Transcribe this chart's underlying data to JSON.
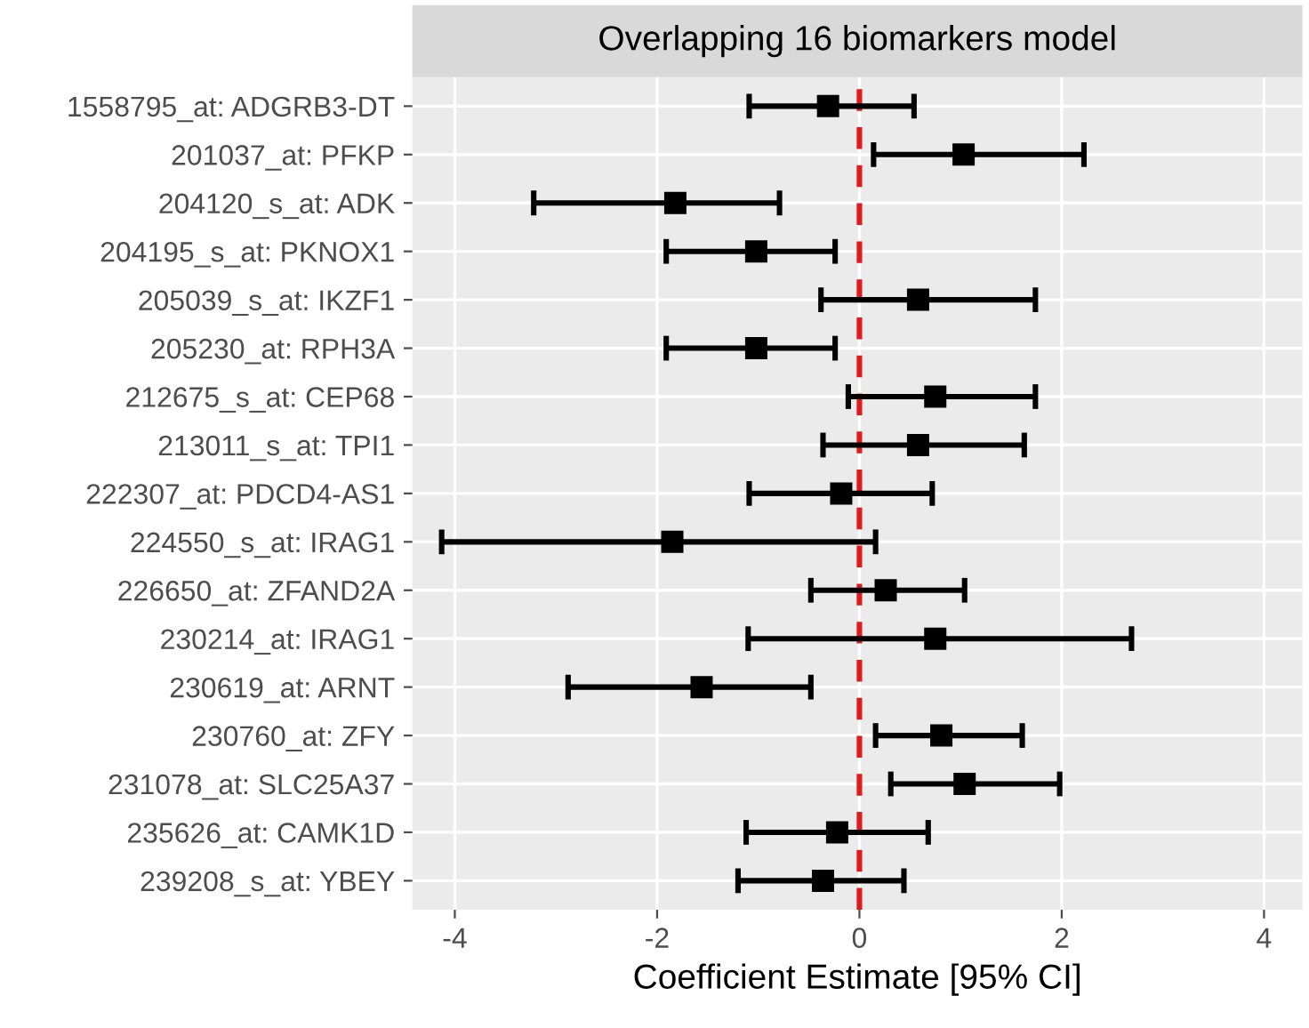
{
  "chart_data": {
    "type": "scatter",
    "orientation": "horizontal",
    "title": "Overlapping 16 biomarkers model",
    "xlabel": "Coefficient Estimate [95% CI]",
    "categories": [
      "1558795_at: ADGRB3-DT",
      "201037_at: PFKP",
      "204120_s_at: ADK",
      "204195_s_at: PKNOX1",
      "205039_s_at: IKZF1",
      "205230_at: RPH3A",
      "212675_s_at: CEP68",
      "213011_s_at: TPI1",
      "222307_at: PDCD4-AS1",
      "224550_s_at: IRAG1",
      "226650_at: ZFAND2A",
      "230214_at: IRAG1",
      "230619_at: ARNT",
      "230760_at: ZFY",
      "231078_at: SLC25A37",
      "235626_at: CAMK1D",
      "239208_s_at: YBEY"
    ],
    "values": [
      -0.31,
      1.03,
      -1.82,
      -1.02,
      0.58,
      -1.02,
      0.75,
      0.58,
      -0.18,
      -1.85,
      0.26,
      0.75,
      -1.56,
      0.81,
      1.04,
      -0.22,
      -0.36
    ],
    "errors": [
      [
        -1.09,
        0.54
      ],
      [
        0.14,
        2.22
      ],
      [
        -3.22,
        -0.79
      ],
      [
        -1.91,
        -0.24
      ],
      [
        -0.38,
        1.74
      ],
      [
        -1.91,
        -0.24
      ],
      [
        -0.11,
        1.74
      ],
      [
        -0.36,
        1.63
      ],
      [
        -1.09,
        0.72
      ],
      [
        -4.13,
        0.16
      ],
      [
        -0.48,
        1.04
      ],
      [
        -1.1,
        2.69
      ],
      [
        -2.88,
        -0.48
      ],
      [
        0.16,
        1.61
      ],
      [
        0.31,
        1.98
      ],
      [
        -1.12,
        0.68
      ],
      [
        -1.2,
        0.44
      ]
    ],
    "color": "#000000",
    "marker": "square",
    "xlim": [
      -4.42,
      4.38
    ],
    "xticks": [
      -4,
      -2,
      0,
      2,
      4
    ],
    "grid": true,
    "ref_lines": [
      {
        "axis": "x",
        "value": 0,
        "color": "#e31a1c",
        "line_style": "dashed"
      }
    ]
  }
}
